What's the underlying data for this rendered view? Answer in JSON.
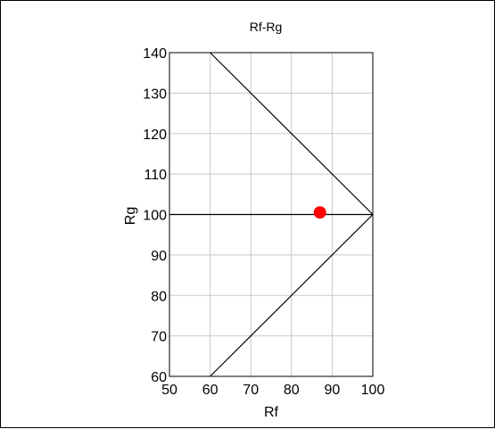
{
  "chart_data": {
    "type": "scatter",
    "title": "Rf-Rg",
    "xlabel": "Rf",
    "ylabel": "Rg",
    "xlim": [
      50,
      100
    ],
    "ylim": [
      60,
      140
    ],
    "x_ticks": [
      50,
      60,
      70,
      80,
      90,
      100
    ],
    "y_ticks": [
      60,
      70,
      80,
      90,
      100,
      110,
      120,
      130,
      140
    ],
    "grid": true,
    "reference_lines": [
      {
        "points": [
          [
            60,
            140
          ],
          [
            100,
            100
          ]
        ]
      },
      {
        "points": [
          [
            100,
            100
          ],
          [
            60,
            60
          ]
        ]
      },
      {
        "points": [
          [
            50,
            100
          ],
          [
            100,
            100
          ]
        ]
      }
    ],
    "points": [
      {
        "x": 87,
        "y": 100.5
      }
    ],
    "colors": {
      "point": "#ff0000",
      "grid": "#c8c8c8",
      "line": "#000000"
    }
  }
}
